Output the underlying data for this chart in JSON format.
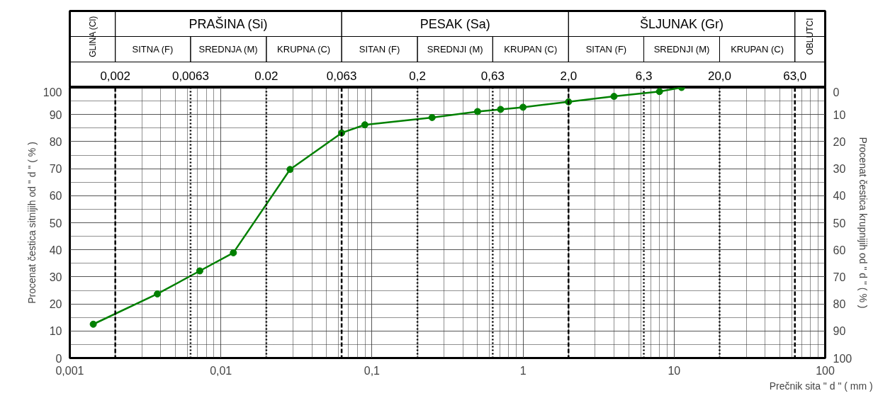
{
  "chart_data": {
    "type": "line",
    "xlabel": "Prečnik sita   \" d \"  ( mm )",
    "ylabel": "Procenat čestica sitnijih od \" d \" ( % )",
    "y2label": "Procenat čestica krupnijih od \" d \" ( % )",
    "x": [
      0.00143,
      0.0038,
      0.00725,
      0.0121,
      0.0287,
      0.063,
      0.0897,
      0.25,
      0.5,
      0.71,
      1.0,
      2.0,
      4.0,
      8.0,
      11.2
    ],
    "values": [
      12.5,
      23.7,
      32.2,
      38.9,
      69.7,
      83.2,
      86.2,
      88.9,
      91.1,
      91.9,
      92.7,
      94.7,
      96.7,
      98.5,
      100
    ],
    "color": "#008000",
    "marker": "circle",
    "line_style": "solid",
    "log": "x",
    "grid": true,
    "xlim": [
      0.001,
      100
    ],
    "xticks": [
      {
        "value": 0.001,
        "label": "0,001"
      },
      {
        "value": 0.01,
        "label": "0,01"
      },
      {
        "value": 0.1,
        "label": "0,1"
      },
      1,
      10,
      100
    ],
    "ylim": [
      0,
      100
    ],
    "yticks": [
      0,
      10,
      20,
      30,
      40,
      50,
      60,
      70,
      80,
      90,
      100
    ],
    "y2lim": [
      100,
      0
    ],
    "y2ticks": [
      0,
      10,
      20,
      30,
      40,
      50,
      60,
      70,
      80,
      90,
      100
    ],
    "ref_lines": [
      {
        "axis": "x",
        "value": 0.002,
        "label": "0,002",
        "line_style": "dashed"
      },
      {
        "axis": "x",
        "value": 0.0063,
        "label": "0,0063",
        "line_style": "dotted"
      },
      {
        "axis": "x",
        "value": 0.02,
        "label": "0.02",
        "line_style": "dotted"
      },
      {
        "axis": "x",
        "value": 0.063,
        "label": "0,063",
        "line_style": "dashed"
      },
      {
        "axis": "x",
        "value": 0.2,
        "label": "0,2",
        "line_style": "dotted"
      },
      {
        "axis": "x",
        "value": 0.63,
        "label": "0,63",
        "line_style": "dotted"
      },
      {
        "axis": "x",
        "value": 2.0,
        "label": "2,0",
        "line_style": "dashed"
      },
      {
        "axis": "x",
        "value": 6.3,
        "label": "6,3",
        "line_style": "dotted"
      },
      {
        "axis": "x",
        "value": 20.0,
        "label": "20,0",
        "line_style": "dotted"
      },
      {
        "axis": "x",
        "value": 63.0,
        "label": "63,0",
        "line_style": "dashed"
      }
    ],
    "annotations": [
      "GLINA (Cl)",
      "PRAŠINA (Si)",
      "PESAK (Sa)",
      "ŠLJUNAK (Gr)",
      "OBLUTCI",
      "SITNA (F)",
      "SREDNJA (M)",
      "KRUPNA (C)",
      "SITAN (F)",
      "SREDNJI (M)",
      "KRUPAN (C)",
      "SITAN (F)",
      "SREDNJI (M)",
      "KRUPAN (C)"
    ]
  }
}
